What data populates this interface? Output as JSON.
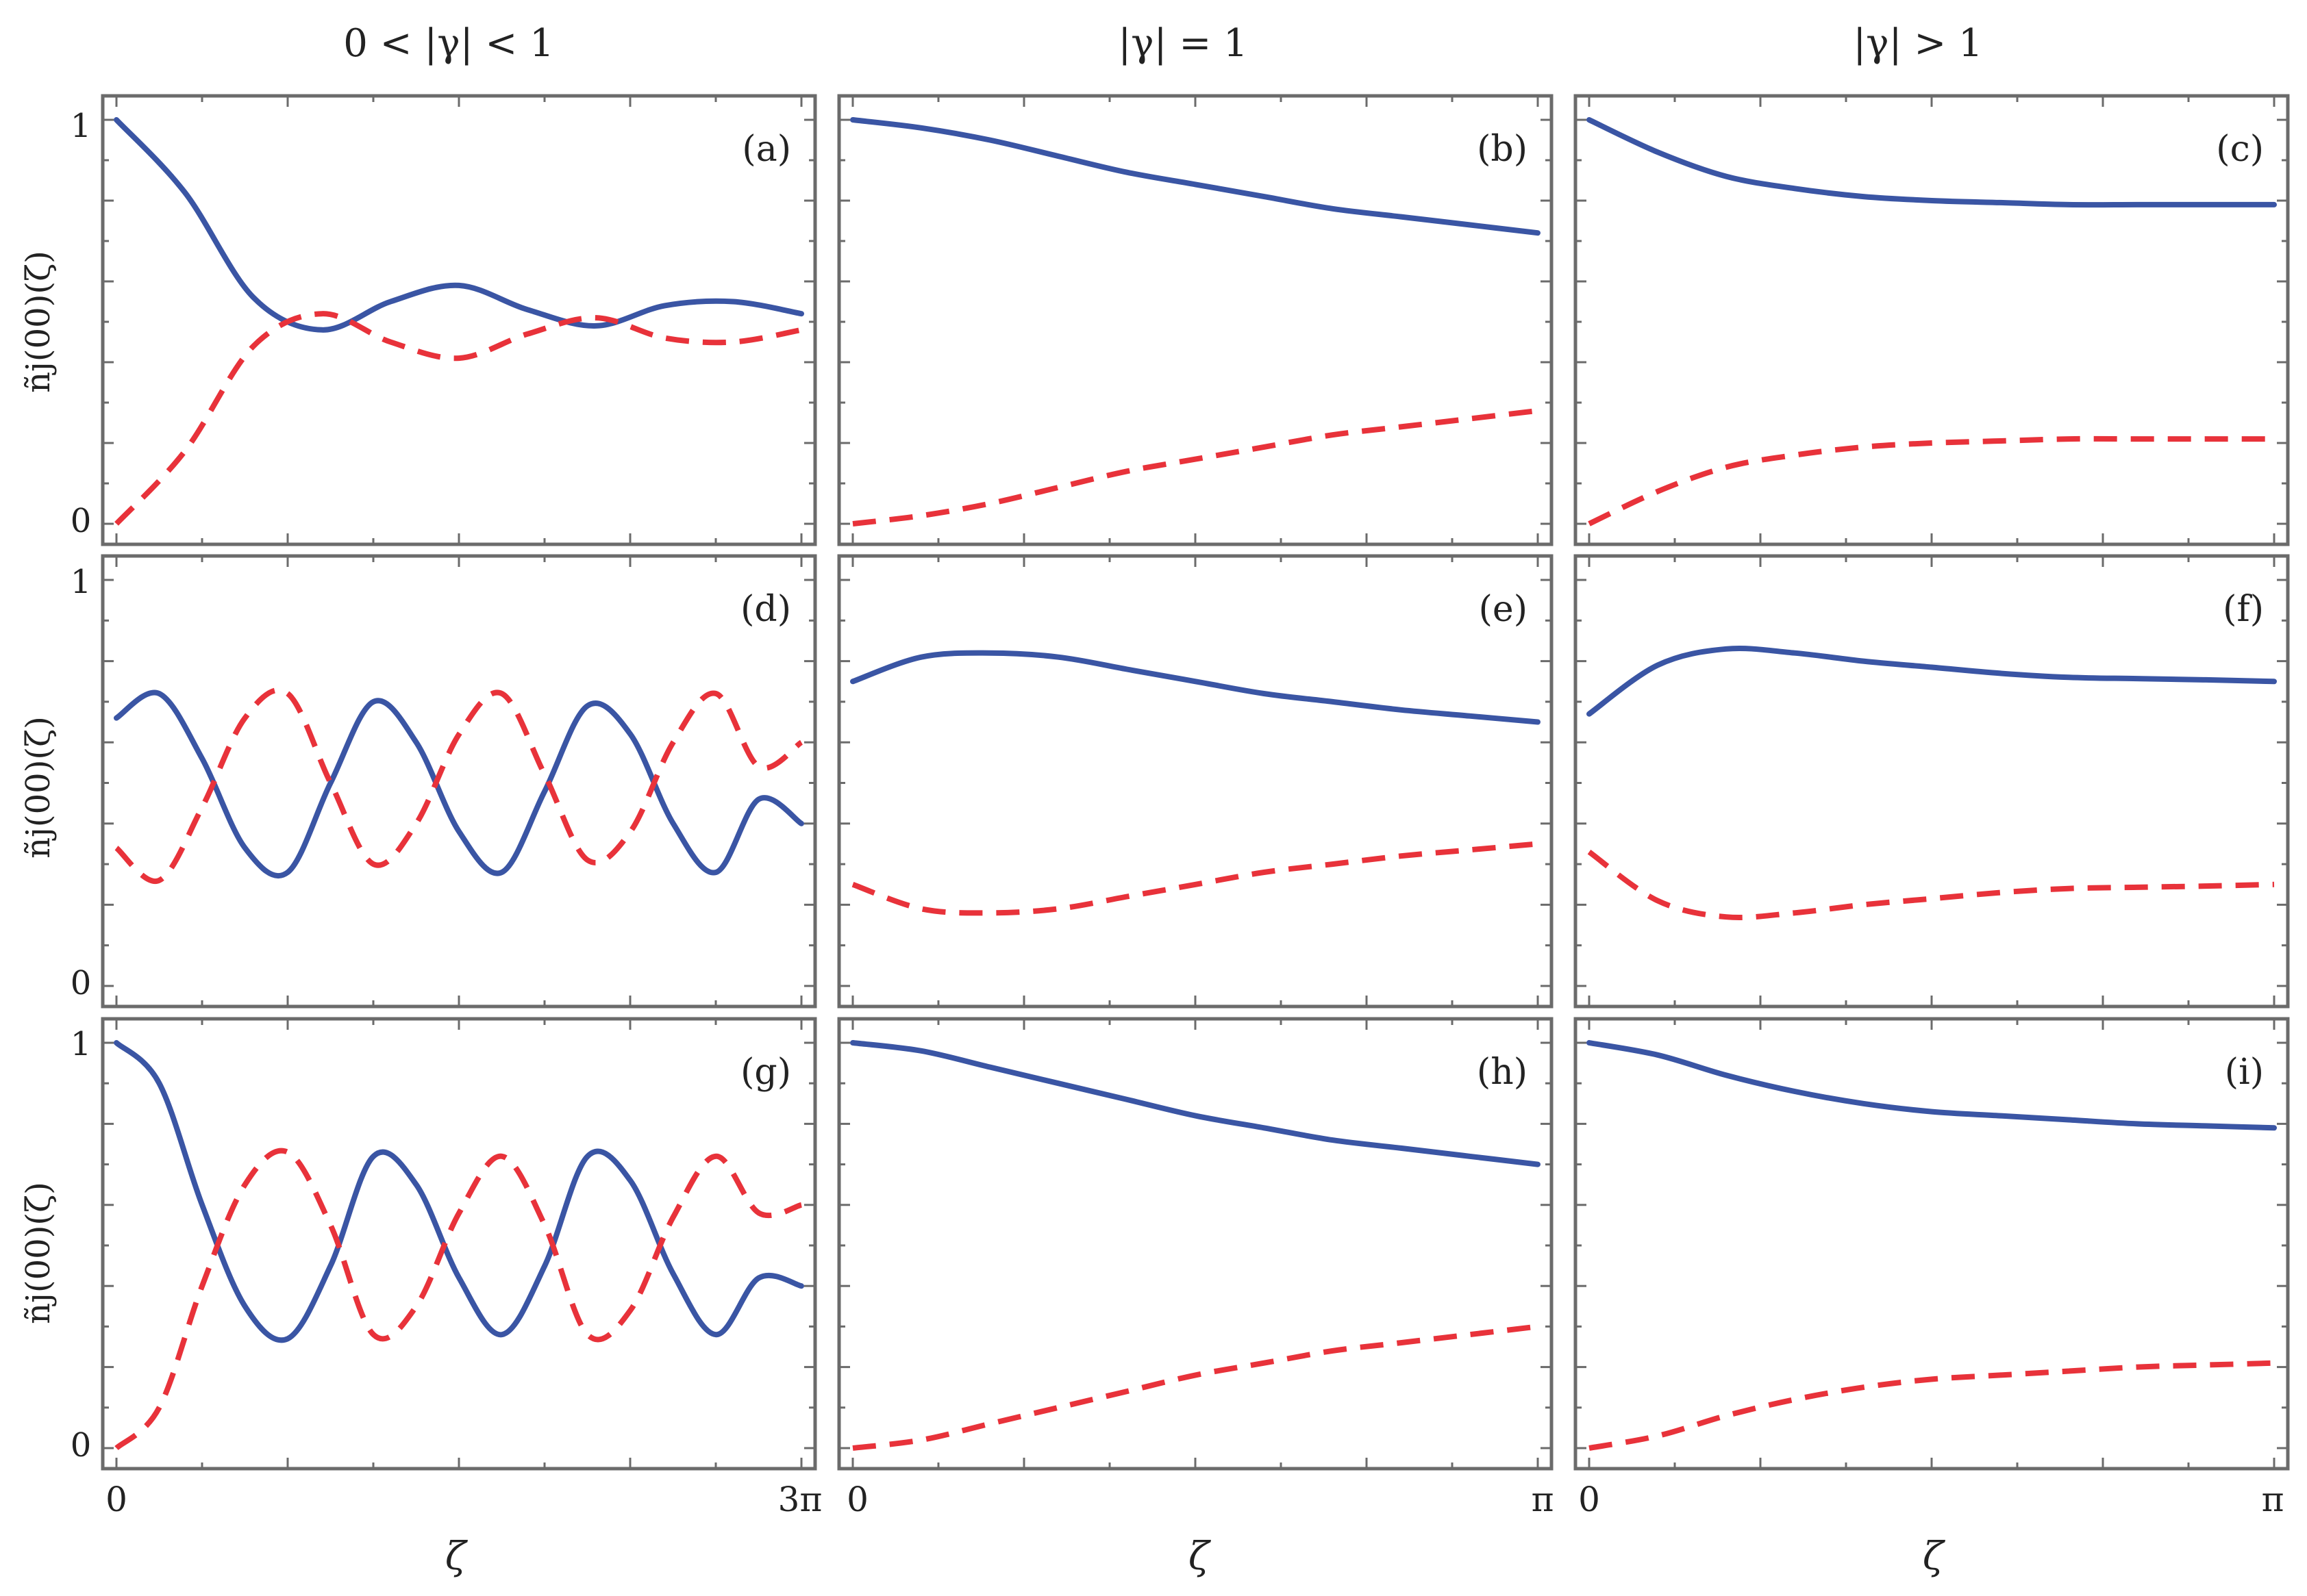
{
  "column_titles": [
    "0 < |γ| < 1",
    "|γ| = 1",
    "|γ| > 1"
  ],
  "y_label": "ñj(00)(ζ)",
  "x_label": "ζ",
  "y_ticks": [
    "0",
    "1"
  ],
  "x_ticks": {
    "left_col": [
      "0",
      "3π"
    ],
    "other_cols": [
      "0",
      "π"
    ]
  },
  "colors": {
    "solid": "#3a55a4",
    "dashed": "#e8323a",
    "frame": "#6b6b6b"
  },
  "chart_data": [
    {
      "panel": "(a)",
      "type": "line",
      "xlim": [
        0,
        9.42
      ],
      "ylim": [
        0,
        1
      ],
      "x": [
        0,
        0.942,
        1.885,
        2.827,
        3.77,
        4.712,
        5.655,
        6.597,
        7.54,
        8.482,
        9.42
      ],
      "series": [
        {
          "style": "solid",
          "values": [
            1.0,
            0.82,
            0.56,
            0.48,
            0.55,
            0.59,
            0.53,
            0.49,
            0.54,
            0.55,
            0.52
          ]
        },
        {
          "style": "dashed",
          "values": [
            0.0,
            0.18,
            0.44,
            0.52,
            0.45,
            0.41,
            0.47,
            0.51,
            0.46,
            0.45,
            0.48
          ]
        }
      ]
    },
    {
      "panel": "(b)",
      "type": "line",
      "xlim": [
        0,
        3.14
      ],
      "ylim": [
        0,
        1
      ],
      "x": [
        0,
        0.314,
        0.628,
        0.942,
        1.257,
        1.571,
        1.885,
        2.199,
        2.513,
        2.827,
        3.14
      ],
      "series": [
        {
          "style": "solid",
          "values": [
            1.0,
            0.98,
            0.95,
            0.91,
            0.87,
            0.84,
            0.81,
            0.78,
            0.76,
            0.74,
            0.72
          ]
        },
        {
          "style": "dashed",
          "values": [
            0.0,
            0.02,
            0.05,
            0.09,
            0.13,
            0.16,
            0.19,
            0.22,
            0.24,
            0.26,
            0.28
          ]
        }
      ]
    },
    {
      "panel": "(c)",
      "type": "line",
      "xlim": [
        0,
        3.14
      ],
      "ylim": [
        0,
        1
      ],
      "x": [
        0,
        0.314,
        0.628,
        0.942,
        1.257,
        1.571,
        1.885,
        2.199,
        2.513,
        2.827,
        3.14
      ],
      "series": [
        {
          "style": "solid",
          "values": [
            1.0,
            0.92,
            0.86,
            0.83,
            0.81,
            0.8,
            0.795,
            0.79,
            0.79,
            0.79,
            0.79
          ]
        },
        {
          "style": "dashed",
          "values": [
            0.0,
            0.08,
            0.14,
            0.17,
            0.19,
            0.2,
            0.205,
            0.21,
            0.21,
            0.21,
            0.21
          ]
        }
      ]
    },
    {
      "panel": "(d)",
      "type": "line",
      "xlim": [
        0,
        9.42
      ],
      "ylim": [
        0,
        1
      ],
      "x": [
        0,
        0.589,
        1.178,
        1.767,
        2.356,
        2.945,
        3.534,
        4.123,
        4.712,
        5.301,
        5.89,
        6.479,
        7.068,
        7.657,
        8.246,
        8.835,
        9.42
      ],
      "series": [
        {
          "style": "solid",
          "values": [
            0.66,
            0.72,
            0.56,
            0.34,
            0.28,
            0.5,
            0.7,
            0.6,
            0.38,
            0.28,
            0.48,
            0.69,
            0.62,
            0.4,
            0.28,
            0.46,
            0.4
          ]
        },
        {
          "style": "dashed",
          "values": [
            0.34,
            0.26,
            0.44,
            0.66,
            0.72,
            0.5,
            0.3,
            0.4,
            0.62,
            0.72,
            0.52,
            0.31,
            0.38,
            0.6,
            0.72,
            0.54,
            0.6
          ]
        }
      ]
    },
    {
      "panel": "(e)",
      "type": "line",
      "xlim": [
        0,
        3.14
      ],
      "ylim": [
        0,
        1
      ],
      "x": [
        0,
        0.314,
        0.628,
        0.942,
        1.257,
        1.571,
        1.885,
        2.199,
        2.513,
        2.827,
        3.14
      ],
      "series": [
        {
          "style": "solid",
          "values": [
            0.75,
            0.81,
            0.82,
            0.81,
            0.78,
            0.75,
            0.72,
            0.7,
            0.68,
            0.665,
            0.65
          ]
        },
        {
          "style": "dashed",
          "values": [
            0.25,
            0.19,
            0.18,
            0.19,
            0.22,
            0.25,
            0.28,
            0.3,
            0.32,
            0.335,
            0.35
          ]
        }
      ]
    },
    {
      "panel": "(f)",
      "type": "line",
      "xlim": [
        0,
        3.14
      ],
      "ylim": [
        0,
        1
      ],
      "x": [
        0,
        0.314,
        0.628,
        0.942,
        1.257,
        1.571,
        1.885,
        2.199,
        2.513,
        2.827,
        3.14
      ],
      "series": [
        {
          "style": "solid",
          "values": [
            0.67,
            0.79,
            0.83,
            0.82,
            0.8,
            0.785,
            0.77,
            0.76,
            0.757,
            0.754,
            0.75
          ]
        },
        {
          "style": "dashed",
          "values": [
            0.33,
            0.21,
            0.17,
            0.18,
            0.2,
            0.215,
            0.23,
            0.24,
            0.243,
            0.246,
            0.25
          ]
        }
      ]
    },
    {
      "panel": "(g)",
      "type": "line",
      "xlim": [
        0,
        9.42
      ],
      "ylim": [
        0,
        1
      ],
      "x": [
        0,
        0.589,
        1.178,
        1.767,
        2.356,
        2.945,
        3.534,
        4.123,
        4.712,
        5.301,
        5.89,
        6.479,
        7.068,
        7.657,
        8.246,
        8.835,
        9.42
      ],
      "series": [
        {
          "style": "solid",
          "values": [
            1.0,
            0.9,
            0.6,
            0.35,
            0.27,
            0.45,
            0.72,
            0.65,
            0.42,
            0.28,
            0.45,
            0.72,
            0.66,
            0.43,
            0.28,
            0.42,
            0.4
          ]
        },
        {
          "style": "dashed",
          "values": [
            0.0,
            0.1,
            0.4,
            0.65,
            0.73,
            0.55,
            0.28,
            0.35,
            0.58,
            0.72,
            0.55,
            0.28,
            0.34,
            0.57,
            0.72,
            0.58,
            0.6
          ]
        }
      ]
    },
    {
      "panel": "(h)",
      "type": "line",
      "xlim": [
        0,
        3.14
      ],
      "ylim": [
        0,
        1
      ],
      "x": [
        0,
        0.314,
        0.628,
        0.942,
        1.257,
        1.571,
        1.885,
        2.199,
        2.513,
        2.827,
        3.14
      ],
      "series": [
        {
          "style": "solid",
          "values": [
            1.0,
            0.98,
            0.94,
            0.9,
            0.86,
            0.82,
            0.79,
            0.76,
            0.74,
            0.72,
            0.7
          ]
        },
        {
          "style": "dashed",
          "values": [
            0.0,
            0.02,
            0.06,
            0.1,
            0.14,
            0.18,
            0.21,
            0.24,
            0.26,
            0.28,
            0.3
          ]
        }
      ]
    },
    {
      "panel": "(i)",
      "type": "line",
      "xlim": [
        0,
        3.14
      ],
      "ylim": [
        0,
        1
      ],
      "x": [
        0,
        0.314,
        0.628,
        0.942,
        1.257,
        1.571,
        1.885,
        2.199,
        2.513,
        2.827,
        3.14
      ],
      "series": [
        {
          "style": "solid",
          "values": [
            1.0,
            0.97,
            0.92,
            0.88,
            0.85,
            0.83,
            0.82,
            0.81,
            0.8,
            0.795,
            0.79
          ]
        },
        {
          "style": "dashed",
          "values": [
            0.0,
            0.03,
            0.08,
            0.12,
            0.15,
            0.17,
            0.18,
            0.19,
            0.2,
            0.205,
            0.21
          ]
        }
      ]
    }
  ]
}
